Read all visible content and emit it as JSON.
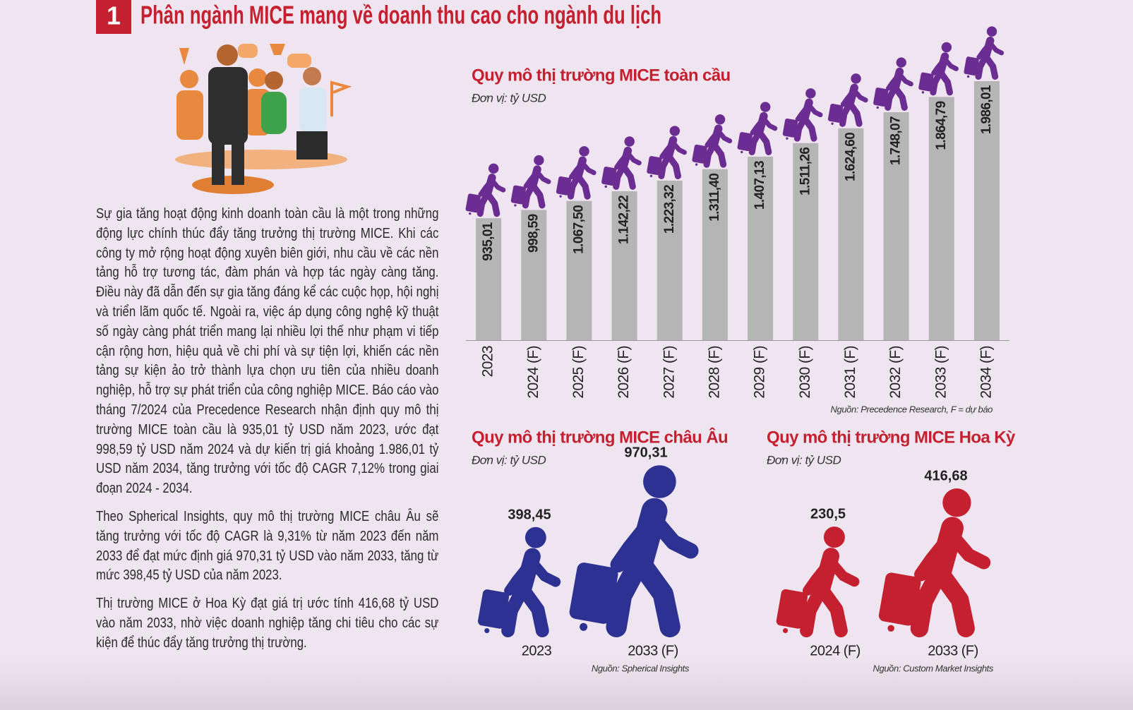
{
  "header": {
    "number": "1",
    "title": "Phân ngành MICE mang về doanh thu cao cho ngành du lịch"
  },
  "article": {
    "paragraphs": [
      "Sự gia tăng hoạt động kinh doanh toàn cầu là một trong những động lực chính thúc đẩy tăng trưởng thị trường MICE. Khi các công ty mở rộng hoạt động xuyên biên giới, nhu cầu về các nền tảng hỗ trợ tương tác, đàm phán và hợp tác ngày càng tăng. Điều này đã dẫn đến sự gia tăng đáng kể các cuộc họp, hội nghị và triển lãm quốc tế. Ngoài ra, việc áp dụng công nghệ kỹ thuật số ngày càng phát triển mang lại nhiều lợi thế như phạm vi tiếp cận rộng hơn, hiệu quả về chi phí và sự tiện lợi, khiến các nền tảng sự kiện ảo trở thành lựa chọn ưu tiên của nhiều doanh nghiệp, hỗ trợ sự phát triển của công nghiệp MICE. Báo cáo vào tháng 7/2024 của Precedence Research nhận định quy mô thị trường MICE toàn cầu là 935,01 tỷ USD năm 2023, ước đạt 998,59 tỷ USD năm 2024 và dự kiến trị giá khoảng 1.986,01 tỷ USD năm 2034, tăng trưởng với tốc độ CAGR 7,12% trong giai đoạn 2024 - 2034.",
      "Theo Spherical Insights, quy mô thị trường MICE châu Âu sẽ tăng trưởng với tốc độ CAGR là 9,31% từ năm 2023 đến năm 2033 để đạt mức định giá 970,31 tỷ USD vào năm 2033, tăng từ mức 398,45 tỷ USD của năm 2023.",
      "Thị trường MICE ở Hoa Kỳ đạt giá trị ước tính 416,68 tỷ USD vào năm 2033, nhờ việc doanh nghiệp tăng chi tiêu cho các sự kiện để thúc đẩy tăng trưởng thị trường."
    ]
  },
  "chart_data": [
    {
      "type": "bar",
      "title": "Quy mô thị trường MICE toàn cầu",
      "subtitle": "Đơn vị: tỷ USD",
      "categories": [
        "2023",
        "2024 (F)",
        "2025 (F)",
        "2026 (F)",
        "2027 (F)",
        "2028 (F)",
        "2029 (F)",
        "2030 (F)",
        "2031 (F)",
        "2032 (F)",
        "2033 (F)",
        "2034 (F)"
      ],
      "values": [
        935.01,
        998.59,
        1067.5,
        1142.22,
        1223.32,
        1311.4,
        1407.13,
        1511.26,
        1624.6,
        1748.07,
        1864.79,
        1986.01
      ],
      "value_labels": [
        "935,01",
        "998,59",
        "1.067,50",
        "1.142,22",
        "1.223,32",
        "1.311,40",
        "1.407,13",
        "1.511,26",
        "1.624,60",
        "1.748,07",
        "1.864,79",
        "1.986,01"
      ],
      "color": "#b5b5b5",
      "icon_color": "#6b2d91",
      "source": "Nguồn: Precedence Research, F = dự báo"
    },
    {
      "type": "pictogram",
      "title": "Quy mô thị trường MICE châu Âu",
      "subtitle": "Đơn vị: tỷ USD",
      "categories": [
        "2023",
        "2033 (F)"
      ],
      "values": [
        398.45,
        970.31
      ],
      "value_labels": [
        "398,45",
        "970,31"
      ],
      "color": "#2d3192",
      "source": "Nguồn: Spherical Insights"
    },
    {
      "type": "pictogram",
      "title": "Quy mô thị trường MICE Hoa Kỳ",
      "subtitle": "Đơn vị: tỷ USD",
      "categories": [
        "2024 (F)",
        "2033 (F)"
      ],
      "values": [
        230.5,
        416.68
      ],
      "value_labels": [
        "230,5",
        "416,68"
      ],
      "color": "#c4202f",
      "source": "Nguồn: Custom Market Insights"
    }
  ]
}
